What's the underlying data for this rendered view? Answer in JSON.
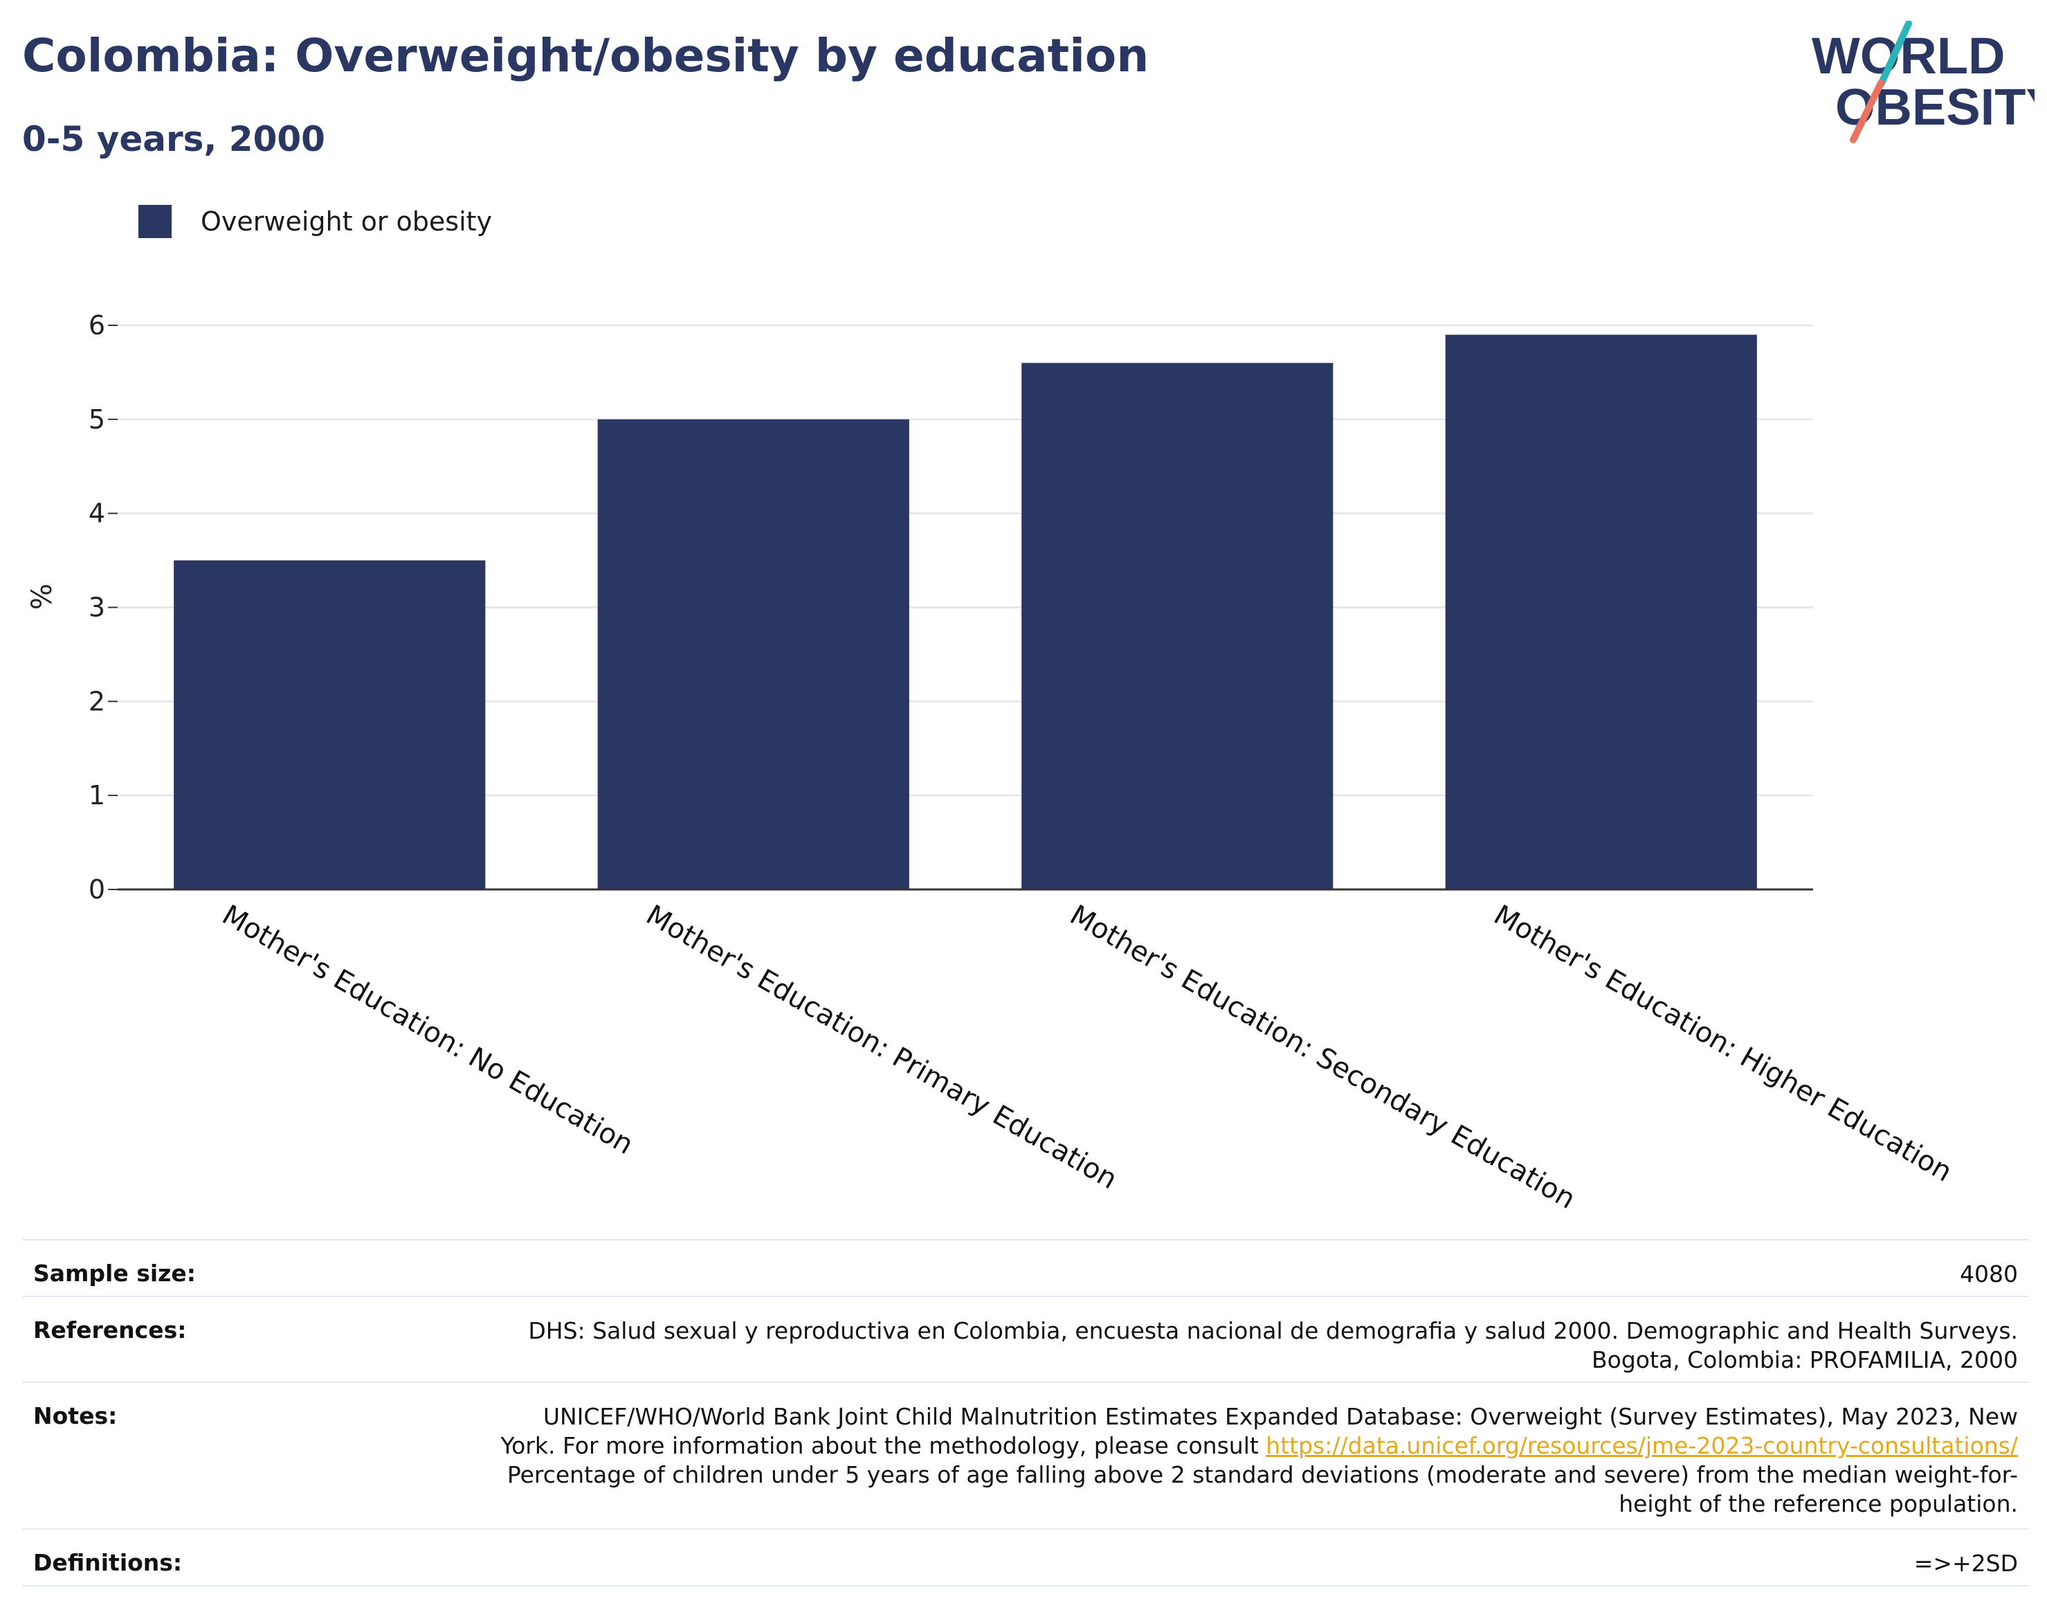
{
  "header": {
    "title": "Colombia: Overweight/obesity by education",
    "subtitle": "0-5 years, 2000"
  },
  "logo": {
    "line1": "WORLD",
    "line2": "OBESITY",
    "colors": {
      "text": "#2b3763",
      "accent_teal": "#2bb5b8",
      "accent_coral": "#e8735f"
    }
  },
  "colors": {
    "bar": "#2b3763",
    "grid": "#e8e8ec",
    "axis": "#333333"
  },
  "chart_data": {
    "type": "bar",
    "categories": [
      "Mother's Education: No Education",
      "Mother's Education: Primary Education",
      "Mother's Education: Secondary Education",
      "Mother's Education: Higher Education"
    ],
    "series": [
      {
        "name": "Overweight or obesity",
        "values": [
          3.5,
          5.0,
          5.6,
          5.9
        ]
      }
    ],
    "ylabel": "%",
    "xlabel": "",
    "ylim": [
      0,
      6
    ],
    "yticks": [
      0,
      1,
      2,
      3,
      4,
      5,
      6
    ],
    "grid": true,
    "legend_position": "top-left"
  },
  "info": {
    "sample_size": {
      "label": "Sample size:",
      "value": "4080"
    },
    "references": {
      "label": "References:",
      "line1": "DHS: Salud sexual y reproductiva en Colombia, encuesta nacional de demografia y salud 2000. Demographic and Health Surveys.",
      "line2": "Bogota, Colombia: PROFAMILIA, 2000"
    },
    "notes": {
      "label": "Notes:",
      "line1": "UNICEF/WHO/World Bank Joint Child Malnutrition Estimates Expanded Database: Overweight (Survey Estimates), May 2023, New",
      "line2_prefix": "York. For more information about the methodology, please consult ",
      "link": "https://data.unicef.org/resources/jme-2023-country-consultations/",
      "line3": "Percentage of children under 5 years of age falling above 2 standard deviations (moderate and severe) from the median weight-for-",
      "line4": "height of the reference population."
    },
    "definitions": {
      "label": "Definitions:",
      "value": "=>+2SD"
    }
  }
}
